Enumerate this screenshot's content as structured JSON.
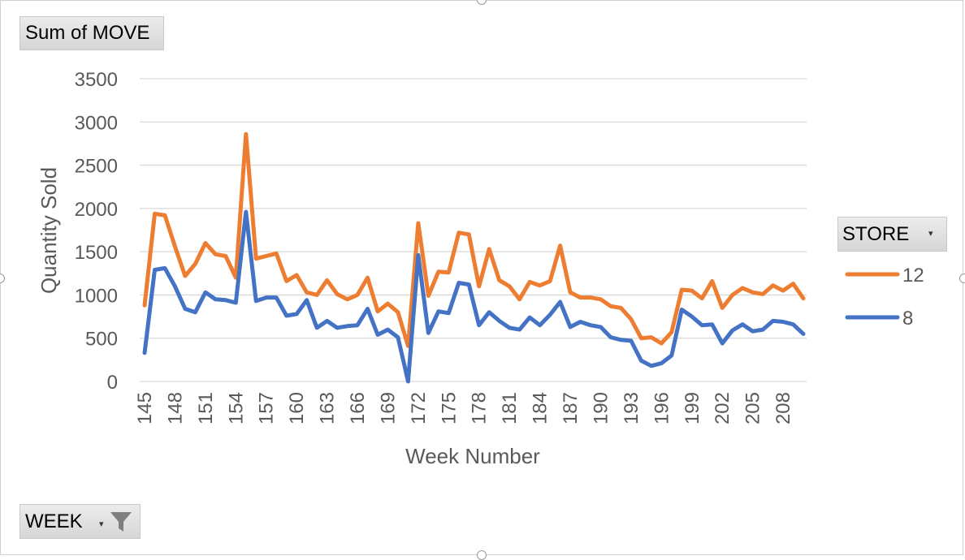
{
  "field_buttons": {
    "values_field": "Sum of MOVE",
    "legend_field": "STORE",
    "axis_field": "WEEK"
  },
  "icons": {
    "dropdown": "dropdown-arrow-icon",
    "filter": "filter-funnel-icon"
  },
  "chart_data": {
    "type": "line",
    "title": "",
    "xlabel": "Week Number",
    "ylabel": "Quantity Sold",
    "ylim": [
      0,
      3500
    ],
    "yticks": [
      0,
      500,
      1000,
      1500,
      2000,
      2500,
      3000,
      3500
    ],
    "x_tick_labels": [
      "145",
      "148",
      "151",
      "154",
      "157",
      "160",
      "163",
      "166",
      "169",
      "172",
      "175",
      "178",
      "181",
      "184",
      "187",
      "190",
      "193",
      "196",
      "199",
      "202",
      "205",
      "208"
    ],
    "grid": "horizontal",
    "legend_position": "right",
    "x": [
      145,
      146,
      147,
      148,
      149,
      150,
      151,
      152,
      153,
      154,
      155,
      156,
      157,
      158,
      159,
      160,
      161,
      162,
      163,
      164,
      165,
      166,
      167,
      168,
      169,
      170,
      171,
      172,
      173,
      174,
      175,
      176,
      177,
      178,
      179,
      180,
      181,
      182,
      183,
      184,
      185,
      186,
      187,
      188,
      189,
      190,
      191,
      192,
      193,
      194,
      195,
      196,
      197,
      198,
      199,
      200,
      201,
      202,
      203,
      204,
      205,
      206,
      207,
      208,
      209,
      210
    ],
    "series": [
      {
        "name": "12",
        "color": "#ED7D31",
        "values": [
          880,
          1940,
          1920,
          1560,
          1220,
          1360,
          1600,
          1470,
          1450,
          1200,
          2860,
          1420,
          1450,
          1480,
          1160,
          1230,
          1030,
          1000,
          1170,
          1010,
          950,
          1000,
          1200,
          810,
          900,
          800,
          410,
          1830,
          990,
          1270,
          1260,
          1720,
          1700,
          1100,
          1530,
          1170,
          1100,
          950,
          1150,
          1110,
          1160,
          1570,
          1030,
          970,
          970,
          950,
          870,
          850,
          720,
          500,
          510,
          440,
          570,
          1060,
          1050,
          960,
          1160,
          850,
          1000,
          1080,
          1030,
          1010,
          1110,
          1050,
          1130,
          960
        ]
      },
      {
        "name": "8",
        "color": "#4472C4",
        "values": [
          330,
          1290,
          1310,
          1100,
          840,
          800,
          1030,
          950,
          940,
          910,
          1960,
          930,
          970,
          970,
          760,
          780,
          940,
          620,
          700,
          620,
          640,
          650,
          840,
          540,
          600,
          510,
          0,
          1460,
          560,
          810,
          790,
          1140,
          1120,
          650,
          800,
          700,
          620,
          600,
          740,
          650,
          770,
          920,
          630,
          690,
          650,
          630,
          510,
          480,
          470,
          240,
          180,
          210,
          300,
          830,
          750,
          650,
          660,
          440,
          590,
          660,
          580,
          600,
          700,
          690,
          660,
          550
        ]
      }
    ]
  }
}
